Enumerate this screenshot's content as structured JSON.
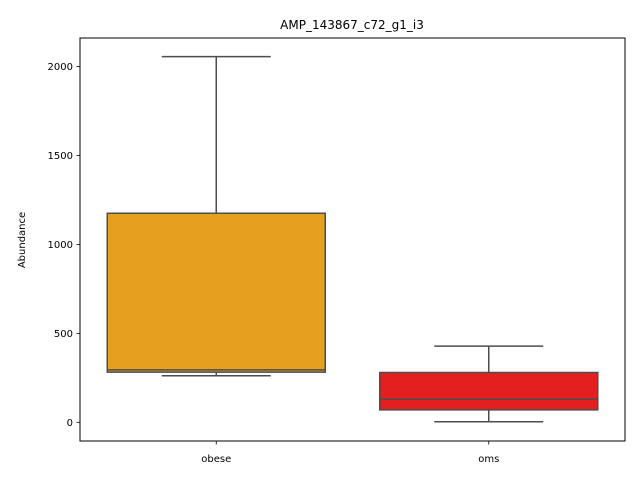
{
  "chart_data": {
    "type": "box",
    "title": "AMP_143867_c72_g1_i3",
    "xlabel": "",
    "ylabel": "Abundance",
    "ylim": [
      -105,
      2160
    ],
    "yticks": [
      0,
      500,
      1000,
      1500,
      2000
    ],
    "grid": false,
    "legend": "none",
    "categories": [
      "obese",
      "oms"
    ],
    "boxes": [
      {
        "category": "obese",
        "whisker_low": 262,
        "q1": 282,
        "median": 295,
        "q3": 1175,
        "whisker_high": 2055,
        "color": "#e69f1f"
      },
      {
        "category": "oms",
        "whisker_low": 3,
        "q1": 70,
        "median": 130,
        "q3": 280,
        "whisker_high": 428,
        "color": "#e31f1f"
      }
    ],
    "line_color": "#4d4d4d"
  }
}
